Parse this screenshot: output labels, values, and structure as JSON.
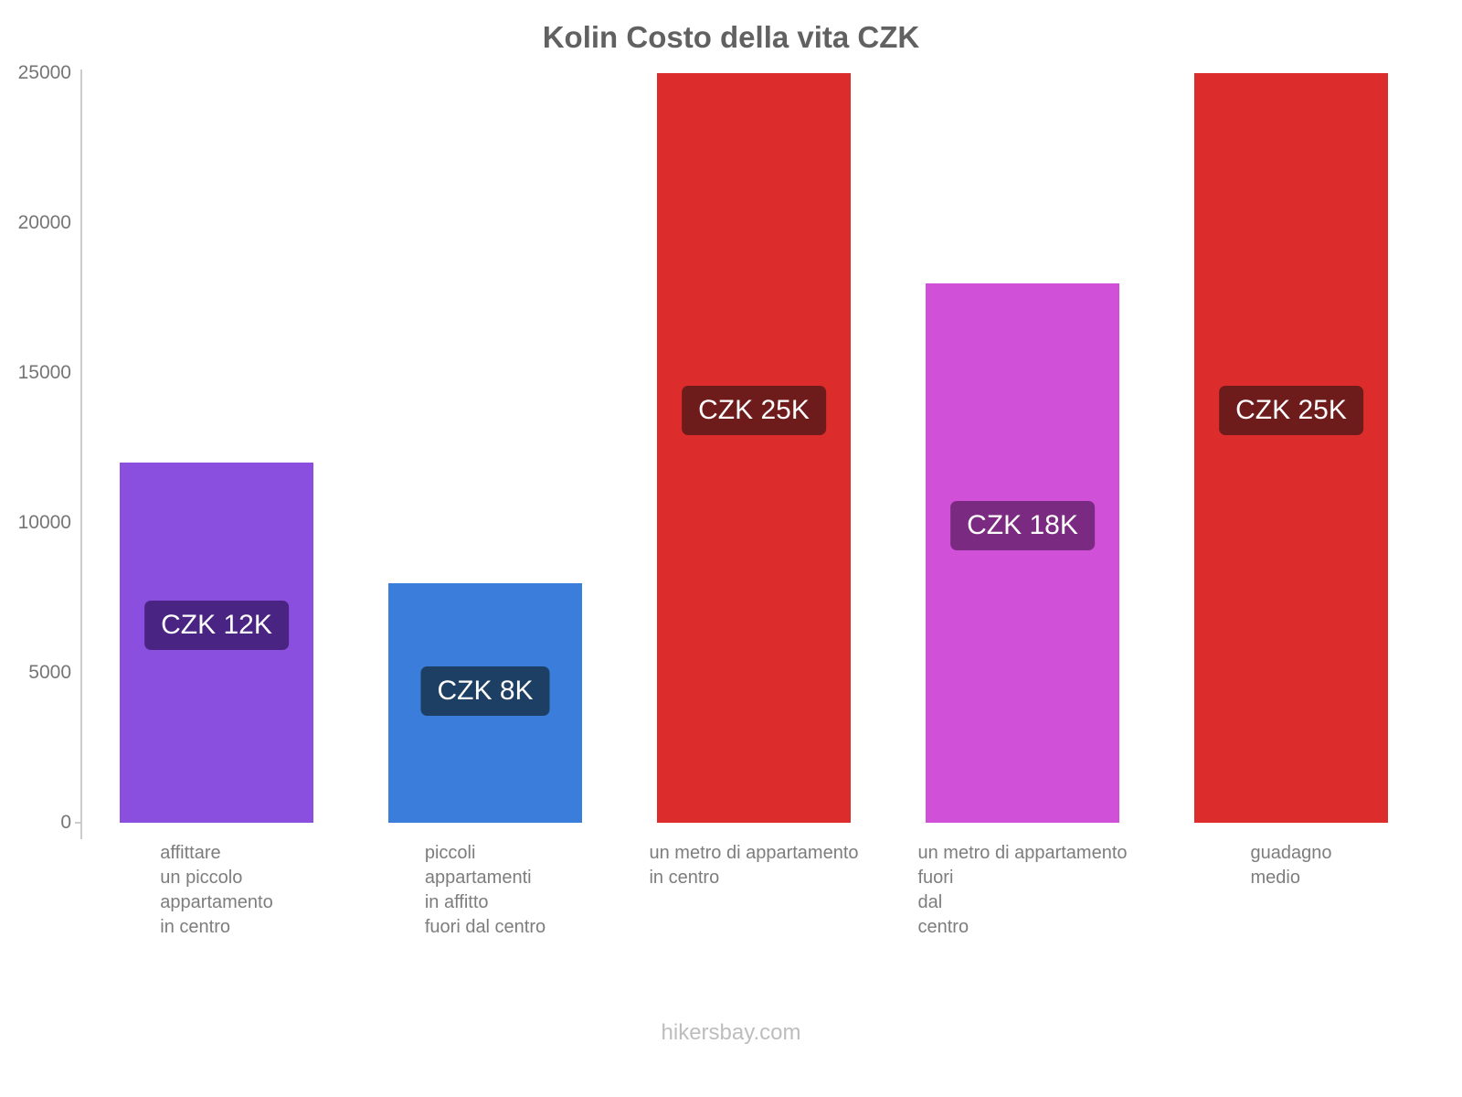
{
  "title": "Kolin Costo della vita CZK",
  "footer": "hikersbay.com",
  "chart_data": {
    "type": "bar",
    "title": "Kolin Costo della vita CZK",
    "xlabel": "",
    "ylabel": "",
    "ylim": [
      0,
      25000
    ],
    "yticks": [
      0,
      5000,
      10000,
      15000,
      20000,
      25000
    ],
    "grid": false,
    "legend": false,
    "categories": [
      "affittare un piccolo appartamento in centro",
      "piccoli appartamenti in affitto fuori dal centro",
      "un metro di appartamento in centro",
      "un metro di appartamento fuori dal centro",
      "guadagno medio"
    ],
    "values": [
      12000,
      8000,
      25000,
      18000,
      25000
    ],
    "bars": [
      {
        "label_lines": [
          "affittare",
          "un piccolo",
          "appartamento",
          "in centro"
        ],
        "value": 12000,
        "value_label": "CZK 12K",
        "color": "#8a4fde",
        "badge_color": "#4a2482"
      },
      {
        "label_lines": [
          "piccoli",
          "appartamenti",
          "in affitto",
          "fuori dal centro"
        ],
        "value": 8000,
        "value_label": "CZK 8K",
        "color": "#3a7ddb",
        "badge_color": "#1d3f63"
      },
      {
        "label_lines": [
          "un metro di appartamento",
          "in centro"
        ],
        "value": 25000,
        "value_label": "CZK 25K",
        "color": "#dc2c2c",
        "badge_color": "#6e1b1b"
      },
      {
        "label_lines": [
          "un metro di appartamento",
          "fuori",
          "dal",
          "centro"
        ],
        "value": 18000,
        "value_label": "CZK 18K",
        "color": "#d050d8",
        "badge_color": "#7a2a80"
      },
      {
        "label_lines": [
          "guadagno",
          "medio"
        ],
        "value": 25000,
        "value_label": "CZK 25K",
        "color": "#dc2c2c",
        "badge_color": "#6e1b1b"
      }
    ]
  }
}
